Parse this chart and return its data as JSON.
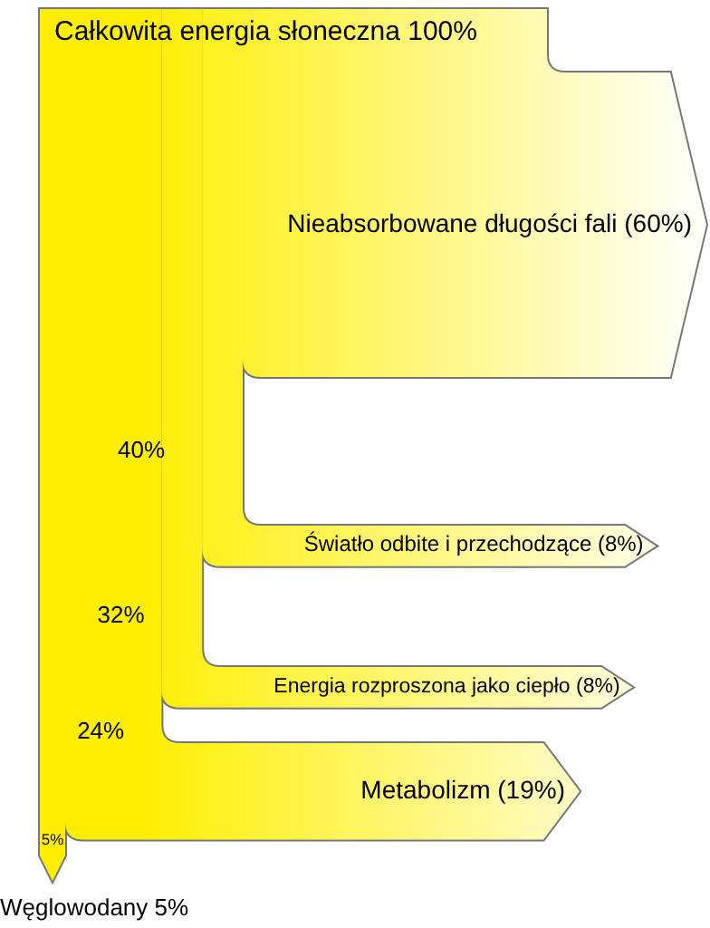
{
  "chart_data": {
    "type": "other",
    "title": "Całkowita energia słoneczna 100%",
    "categories": [
      "Nieabsorbowane długości fali",
      "Światło odbite i przechodzące",
      "Energia rozproszona jako ciepło",
      "Metabolizm",
      "Węglowodany"
    ],
    "values": [
      60,
      8,
      8,
      19,
      5
    ],
    "value_labels": [
      "(60%)",
      "(8%)",
      "(8%)",
      "(19%)",
      "5%"
    ],
    "color": "#ffee00",
    "annotations": [
      "40%",
      "32%",
      "24%",
      "5%"
    ]
  }
}
